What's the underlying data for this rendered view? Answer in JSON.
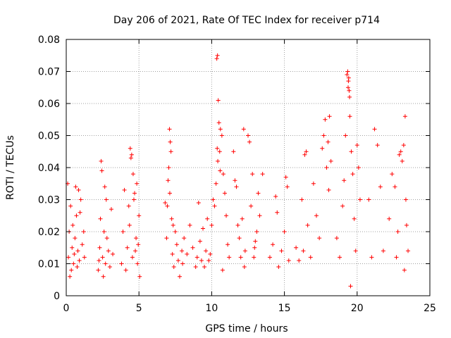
{
  "chart_data": {
    "type": "scatter",
    "title": "Day 206 of 2021, Rate Of TEC Index for receiver p714",
    "xlabel": "GPS time / hours",
    "ylabel": "ROTI / TECUs",
    "xlim": [
      0,
      25
    ],
    "ylim": [
      0,
      0.08
    ],
    "xticks": [
      0,
      5,
      10,
      15,
      20,
      25
    ],
    "xtick_labels": [
      "0",
      "5",
      "10",
      "15",
      "20",
      "25"
    ],
    "yticks": [
      0,
      0.01,
      0.02,
      0.03,
      0.04,
      0.05,
      0.06,
      0.07,
      0.08
    ],
    "ytick_labels": [
      "0",
      "0.01",
      "0.02",
      "0.03",
      "0.04",
      "0.05",
      "0.06",
      "0.07",
      "0.08"
    ],
    "grid": true,
    "marker": "+",
    "color": "#ff0000",
    "series": [
      {
        "name": "ROTI",
        "x": [
          0.1,
          0.15,
          0.2,
          0.3,
          0.35,
          0.4,
          0.45,
          0.5,
          0.55,
          0.6,
          0.7,
          0.75,
          0.8,
          0.85,
          0.9,
          1.0,
          1.1,
          1.2,
          1.25,
          0.25,
          0.65,
          0.95,
          2.2,
          2.3,
          2.4,
          2.45,
          2.5,
          2.6,
          2.65,
          2.7,
          2.8,
          2.9,
          3.0,
          3.1,
          3.2,
          2.35,
          2.55,
          2.75,
          2.25,
          3.8,
          3.9,
          4.0,
          4.1,
          4.2,
          4.3,
          4.4,
          4.45,
          4.5,
          4.55,
          4.6,
          4.7,
          4.8,
          4.9,
          5.0,
          5.05,
          4.35,
          4.65,
          4.75,
          4.85,
          4.95,
          6.8,
          6.9,
          7.0,
          7.05,
          7.1,
          7.15,
          7.2,
          7.25,
          7.3,
          7.4,
          7.5,
          7.6,
          7.7,
          7.8,
          7.95,
          7.12,
          6.95,
          7.35,
          8.0,
          8.1,
          8.3,
          8.5,
          8.7,
          8.9,
          9.0,
          9.1,
          9.2,
          9.3,
          9.4,
          9.5,
          9.6,
          9.7,
          9.8,
          9.9,
          10.0,
          10.1,
          10.2,
          10.3,
          10.35,
          10.4,
          10.45,
          10.5,
          10.55,
          10.6,
          10.7,
          10.8,
          10.9,
          11.0,
          11.1,
          11.2,
          10.38,
          10.42,
          10.58,
          10.75,
          11.5,
          11.6,
          11.7,
          11.8,
          11.9,
          12.0,
          12.1,
          12.2,
          12.3,
          12.5,
          12.6,
          12.7,
          12.8,
          12.9,
          13.0,
          13.1,
          13.2,
          13.3,
          13.5,
          12.25,
          12.95,
          14.0,
          14.2,
          14.4,
          14.5,
          14.6,
          14.8,
          15.0,
          15.1,
          15.2,
          15.3,
          15.8,
          16.0,
          16.2,
          16.4,
          16.5,
          16.6,
          16.8,
          17.0,
          17.2,
          17.4,
          17.6,
          17.7,
          17.8,
          17.9,
          18.0,
          18.1,
          18.2,
          16.3,
          18.05,
          18.6,
          18.8,
          19.0,
          19.1,
          19.2,
          19.3,
          19.35,
          19.4,
          19.45,
          19.5,
          19.6,
          19.7,
          19.8,
          19.9,
          20.0,
          20.1,
          20.2,
          19.38,
          19.42,
          19.48,
          19.55,
          20.8,
          21.0,
          21.2,
          21.4,
          21.6,
          21.8,
          22.2,
          22.4,
          22.6,
          22.8,
          22.9,
          23.0,
          23.1,
          23.2,
          23.3,
          23.35,
          23.4,
          23.5,
          22.7,
          23.25
        ],
        "y": [
          0.035,
          0.012,
          0.02,
          0.028,
          0.008,
          0.015,
          0.022,
          0.01,
          0.013,
          0.018,
          0.025,
          0.009,
          0.014,
          0.033,
          0.011,
          0.03,
          0.016,
          0.02,
          0.012,
          0.006,
          0.034,
          0.026,
          0.008,
          0.015,
          0.042,
          0.039,
          0.012,
          0.02,
          0.034,
          0.01,
          0.018,
          0.014,
          0.009,
          0.027,
          0.013,
          0.024,
          0.006,
          0.03,
          0.011,
          0.01,
          0.02,
          0.033,
          0.008,
          0.015,
          0.028,
          0.046,
          0.043,
          0.044,
          0.012,
          0.038,
          0.032,
          0.018,
          0.01,
          0.025,
          0.006,
          0.022,
          0.03,
          0.014,
          0.035,
          0.016,
          0.029,
          0.018,
          0.036,
          0.04,
          0.052,
          0.048,
          0.045,
          0.024,
          0.013,
          0.009,
          0.02,
          0.016,
          0.011,
          0.006,
          0.014,
          0.032,
          0.028,
          0.022,
          0.01,
          0.018,
          0.013,
          0.022,
          0.015,
          0.009,
          0.012,
          0.029,
          0.017,
          0.011,
          0.021,
          0.009,
          0.014,
          0.024,
          0.011,
          0.013,
          0.022,
          0.03,
          0.028,
          0.035,
          0.074,
          0.075,
          0.061,
          0.054,
          0.045,
          0.052,
          0.05,
          0.038,
          0.032,
          0.025,
          0.016,
          0.012,
          0.046,
          0.042,
          0.039,
          0.008,
          0.045,
          0.036,
          0.034,
          0.022,
          0.018,
          0.012,
          0.024,
          0.052,
          0.014,
          0.05,
          0.048,
          0.028,
          0.038,
          0.012,
          0.017,
          0.02,
          0.032,
          0.025,
          0.038,
          0.009,
          0.015,
          0.012,
          0.016,
          0.031,
          0.026,
          0.009,
          0.014,
          0.02,
          0.037,
          0.034,
          0.011,
          0.015,
          0.011,
          0.03,
          0.044,
          0.045,
          0.022,
          0.012,
          0.035,
          0.025,
          0.018,
          0.046,
          0.05,
          0.055,
          0.04,
          0.048,
          0.056,
          0.042,
          0.014,
          0.033,
          0.018,
          0.012,
          0.028,
          0.036,
          0.05,
          0.069,
          0.07,
          0.067,
          0.064,
          0.056,
          0.045,
          0.038,
          0.024,
          0.014,
          0.047,
          0.04,
          0.03,
          0.065,
          0.068,
          0.062,
          0.003,
          0.03,
          0.012,
          0.052,
          0.047,
          0.034,
          0.014,
          0.024,
          0.038,
          0.034,
          0.02,
          0.044,
          0.045,
          0.042,
          0.047,
          0.056,
          0.03,
          0.022,
          0.014,
          0.012,
          0.008
        ]
      }
    ]
  }
}
